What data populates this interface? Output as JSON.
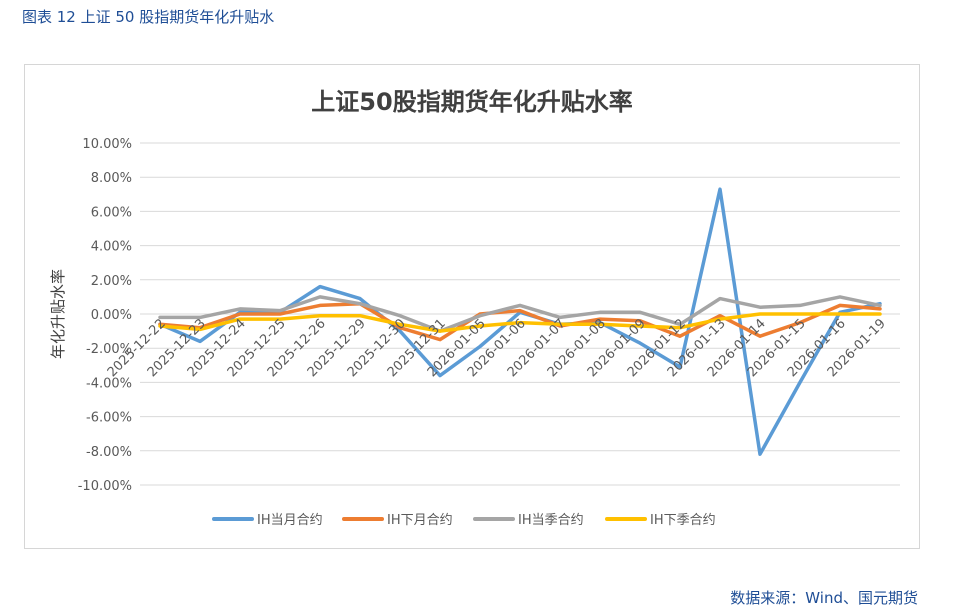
{
  "figure": {
    "caption": "图表 12  上证 50 股指期货年化升贴水",
    "source": "数据来源：Wind、国元期货"
  },
  "colors": {
    "caption": "#1f4e96",
    "grid": "#d9d9d9",
    "axis_text": "#595959",
    "title": "#404040"
  },
  "chart_data": {
    "type": "line",
    "title": "上证50股指期货年化升贴水率",
    "xlabel": "",
    "ylabel": "年化升贴水率",
    "ylim": [
      -10,
      10
    ],
    "ytick_step": 2,
    "ytick_labels": [
      "10.00%",
      "8.00%",
      "6.00%",
      "4.00%",
      "2.00%",
      "0.00%",
      "-2.00%",
      "-4.00%",
      "-6.00%",
      "-8.00%",
      "-10.00%"
    ],
    "legend_position": "bottom",
    "categories": [
      "2025-12-22",
      "2025-12-23",
      "2025-12-24",
      "2025-12-25",
      "2025-12-26",
      "2025-12-29",
      "2025-12-30",
      "2025-12-31",
      "2026-01-05",
      "2026-01-06",
      "2026-01-07",
      "2026-01-08",
      "2026-01-09",
      "2026-01-12",
      "2026-01-13",
      "2026-01-14",
      "2026-01-15",
      "2026-01-16",
      "2026-01-19"
    ],
    "series": [
      {
        "name": "IH当月合约",
        "color": "#5b9bd5",
        "values": [
          -0.6,
          -1.6,
          0.1,
          0.1,
          1.6,
          0.9,
          -1.0,
          -3.6,
          -1.9,
          0.1,
          -0.6,
          -0.5,
          -1.7,
          -3.1,
          7.3,
          -8.2,
          -4.0,
          0.1,
          0.6
        ]
      },
      {
        "name": "IH下月合约",
        "color": "#ed7d31",
        "values": [
          -0.6,
          -0.8,
          0.0,
          0.0,
          0.5,
          0.6,
          -0.8,
          -1.5,
          0.0,
          0.2,
          -0.7,
          -0.3,
          -0.4,
          -1.3,
          -0.1,
          -1.3,
          -0.5,
          0.5,
          0.3
        ]
      },
      {
        "name": "IH当季合约",
        "color": "#a5a5a5",
        "values": [
          -0.2,
          -0.2,
          0.3,
          0.2,
          1.0,
          0.6,
          -0.1,
          -1.0,
          -0.1,
          0.5,
          -0.2,
          0.1,
          0.1,
          -0.6,
          0.9,
          0.4,
          0.5,
          1.0,
          0.5
        ]
      },
      {
        "name": "IH下季合约",
        "color": "#ffc000",
        "values": [
          -0.7,
          -0.9,
          -0.3,
          -0.3,
          -0.1,
          -0.1,
          -0.6,
          -1.0,
          -0.7,
          -0.5,
          -0.6,
          -0.6,
          -0.7,
          -0.8,
          -0.3,
          0.0,
          0.0,
          0.0,
          0.0
        ]
      }
    ]
  }
}
